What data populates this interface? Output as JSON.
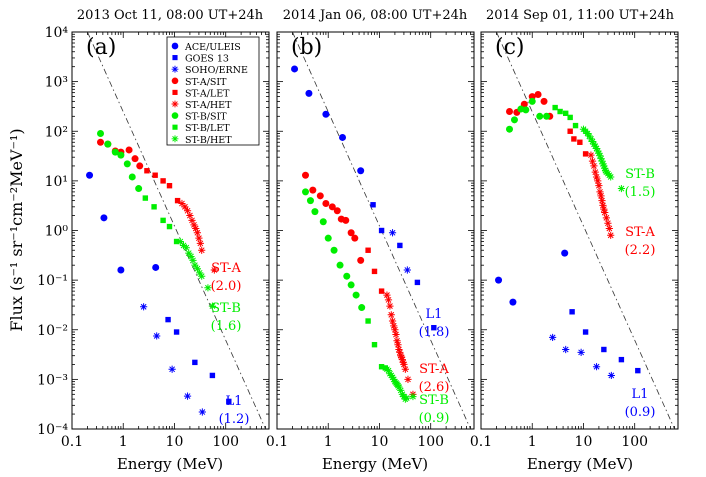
{
  "figure": {
    "ylabel": "Flux (s⁻¹ sr⁻¹cm⁻²MeV⁻¹)",
    "xlabel": "Energy (MeV)",
    "y_tick_labels": [
      "10⁴",
      "10³",
      "10²",
      "10¹",
      "10⁰",
      "10⁻¹",
      "10⁻²",
      "10⁻³",
      "10⁻⁴"
    ],
    "x_tick_labels": [
      "0.1",
      "1",
      "10",
      "100"
    ]
  },
  "legend": [
    {
      "label": "ACE/ULEIS",
      "color": "#0000ff",
      "marker": "circle"
    },
    {
      "label": "GOES 13",
      "color": "#0000ff",
      "marker": "square"
    },
    {
      "label": "SOHO/ERNE",
      "color": "#0000ff",
      "marker": "star"
    },
    {
      "label": "ST-A/SIT",
      "color": "#ff0000",
      "marker": "circle"
    },
    {
      "label": "ST-A/LET",
      "color": "#ff0000",
      "marker": "square"
    },
    {
      "label": "ST-A/HET",
      "color": "#ff0000",
      "marker": "star"
    },
    {
      "label": "ST-B/SIT",
      "color": "#00ee00",
      "marker": "circle"
    },
    {
      "label": "ST-B/LET",
      "color": "#00ee00",
      "marker": "square"
    },
    {
      "label": "ST-B/HET",
      "color": "#00ee00",
      "marker": "star"
    }
  ],
  "chart_data": [
    {
      "type": "scatter",
      "panel": "(a)",
      "title": "2013 Oct 11, 08:00 UT+24h",
      "xlabel": "Energy (MeV)",
      "ylabel": "Flux (s⁻¹ sr⁻¹cm⁻²MeV⁻¹)",
      "xscale": "log",
      "yscale": "log",
      "xlim": [
        0.1,
        700
      ],
      "ylim": [
        0.0001,
        10000
      ],
      "reference_line": {
        "x": [
          0.2,
          600
        ],
        "y": [
          10000,
          0.0001
        ]
      },
      "series": [
        {
          "name": "ACE/ULEIS",
          "x": [
            0.22,
            0.42,
            0.9,
            4.3
          ],
          "y": [
            13,
            1.8,
            0.16,
            0.18
          ]
        },
        {
          "name": "GOES 13",
          "x": [
            7.5,
            11,
            25,
            55,
            115
          ],
          "y": [
            0.016,
            0.009,
            0.0022,
            0.0012,
            0.00036
          ]
        },
        {
          "name": "SOHO/ERNE",
          "x": [
            2.5,
            4.5,
            9,
            18,
            35
          ],
          "y": [
            0.029,
            0.0075,
            0.0016,
            0.00046,
            0.00022
          ]
        },
        {
          "name": "ST-A/SIT",
          "x": [
            0.36,
            0.5,
            0.7,
            0.9,
            1.3,
            1.7,
            2.1
          ],
          "y": [
            60,
            55,
            40,
            38,
            42,
            28,
            20
          ]
        },
        {
          "name": "ST-A/LET",
          "x": [
            2.9,
            4.2,
            6,
            8,
            11.5
          ],
          "y": [
            16,
            13,
            10,
            8,
            4
          ]
        },
        {
          "name": "ST-A/HET",
          "x": [
            14,
            16,
            18,
            20,
            22,
            24,
            26,
            28,
            30,
            32,
            34,
            60
          ],
          "y": [
            3.5,
            3,
            2.5,
            2,
            1.6,
            1.3,
            1.1,
            0.9,
            0.7,
            0.55,
            0.4,
            0.16
          ]
        },
        {
          "name": "ST-B/SIT",
          "x": [
            0.36,
            0.5,
            0.7,
            0.9,
            1.2,
            1.5,
            2
          ],
          "y": [
            90,
            55,
            38,
            33,
            22,
            12,
            7
          ]
        },
        {
          "name": "ST-B/LET",
          "x": [
            2.7,
            4,
            6,
            8,
            11
          ],
          "y": [
            4.5,
            3,
            1.6,
            1.2,
            0.6
          ]
        },
        {
          "name": "ST-B/HET",
          "x": [
            13,
            15,
            17,
            19,
            21,
            23,
            25,
            28,
            31,
            34,
            45,
            55
          ],
          "y": [
            0.6,
            0.5,
            0.45,
            0.35,
            0.3,
            0.25,
            0.2,
            0.17,
            0.14,
            0.12,
            0.07,
            0.03
          ]
        }
      ],
      "annotations": [
        {
          "text": "ST-A",
          "sub": "(2.0)",
          "color": "#ff0000"
        },
        {
          "text": "ST-B",
          "sub": "(1.6)",
          "color": "#00ee00"
        },
        {
          "text": "L1",
          "sub": "(1.2)",
          "color": "#0000ff"
        }
      ]
    },
    {
      "type": "scatter",
      "panel": "(b)",
      "title": "2014 Jan 06, 08:00 UT+24h",
      "xlabel": "Energy (MeV)",
      "xscale": "log",
      "yscale": "log",
      "xlim": [
        0.1,
        700
      ],
      "ylim": [
        0.0001,
        10000
      ],
      "reference_line": {
        "x": [
          0.2,
          600
        ],
        "y": [
          10000,
          0.0001
        ]
      },
      "series": [
        {
          "name": "ACE/ULEIS",
          "x": [
            0.22,
            0.42,
            0.9,
            1.9,
            4.3
          ],
          "y": [
            1800,
            580,
            220,
            75,
            16
          ]
        },
        {
          "name": "GOES 13",
          "x": [
            7.5,
            11,
            25,
            55,
            115
          ],
          "y": [
            3.3,
            1.0,
            0.5,
            0.09,
            0.011
          ]
        },
        {
          "name": "SOHO/ERNE",
          "x": [
            18,
            35
          ],
          "y": [
            0.9,
            0.16
          ]
        },
        {
          "name": "ST-A/SIT",
          "x": [
            0.36,
            0.5,
            0.7,
            0.9,
            1.2,
            1.5,
            1.8,
            2.2,
            2.8,
            3.3,
            4.3
          ],
          "y": [
            13,
            6.5,
            5,
            3.5,
            3,
            2.5,
            1.7,
            1.6,
            0.9,
            0.7,
            0.25
          ]
        },
        {
          "name": "ST-A/LET",
          "x": [
            6,
            8,
            11
          ],
          "y": [
            0.4,
            0.15,
            0.06
          ]
        },
        {
          "name": "ST-A/HET",
          "x": [
            14,
            15,
            16,
            17,
            18,
            19,
            20,
            21,
            22,
            23,
            24,
            25,
            26,
            27,
            28,
            29,
            30,
            32,
            36,
            45
          ],
          "y": [
            0.05,
            0.04,
            0.03,
            0.02,
            0.015,
            0.012,
            0.01,
            0.008,
            0.006,
            0.005,
            0.004,
            0.0035,
            0.003,
            0.0028,
            0.0025,
            0.0022,
            0.002,
            0.0016,
            0.001,
            0.0005
          ]
        },
        {
          "name": "ST-B/SIT",
          "x": [
            0.36,
            0.45,
            0.55,
            0.8,
            1.0,
            1.3,
            1.7,
            2.3,
            2.8,
            3.5,
            4.5
          ],
          "y": [
            6,
            4,
            2.4,
            1.5,
            0.7,
            0.4,
            0.2,
            0.12,
            0.08,
            0.05,
            0.028
          ]
        },
        {
          "name": "ST-B/LET",
          "x": [
            6,
            8,
            11,
            13
          ],
          "y": [
            0.015,
            0.005,
            0.0018,
            0.0017
          ]
        },
        {
          "name": "ST-B/HET",
          "x": [
            14,
            15,
            16,
            17,
            18,
            19,
            20,
            21,
            22,
            23,
            24,
            26,
            28,
            30,
            32,
            34,
            45
          ],
          "y": [
            0.0016,
            0.0015,
            0.0013,
            0.0012,
            0.0011,
            0.001,
            0.0009,
            0.00085,
            0.0008,
            0.00075,
            0.0007,
            0.0006,
            0.0005,
            0.00045,
            0.0004,
            0.00042,
            0.00045
          ]
        }
      ],
      "annotations": [
        {
          "text": "L1",
          "sub": "(1.8)",
          "color": "#0000ff"
        },
        {
          "text": "ST-A",
          "sub": "(2.6)",
          "color": "#ff0000"
        },
        {
          "text": "ST-B",
          "sub": "(0.9)",
          "color": "#00ee00"
        }
      ]
    },
    {
      "type": "scatter",
      "panel": "(c)",
      "title": "2014 Sep 01, 11:00 UT+24h",
      "xlabel": "Energy (MeV)",
      "xscale": "log",
      "yscale": "log",
      "xlim": [
        0.1,
        700
      ],
      "ylim": [
        0.0001,
        10000
      ],
      "reference_line": {
        "x": [
          0.2,
          600
        ],
        "y": [
          10000,
          0.0001
        ]
      },
      "series": [
        {
          "name": "ACE/ULEIS",
          "x": [
            0.22,
            0.42,
            4.3
          ],
          "y": [
            0.1,
            0.036,
            0.35
          ]
        },
        {
          "name": "GOES 13",
          "x": [
            6,
            11,
            25,
            55,
            115
          ],
          "y": [
            0.023,
            0.009,
            0.004,
            0.0025,
            0.0015
          ]
        },
        {
          "name": "SOHO/ERNE",
          "x": [
            2.5,
            4.5,
            9,
            18,
            35
          ],
          "y": [
            0.007,
            0.004,
            0.0035,
            0.0018,
            0.0012
          ]
        },
        {
          "name": "ST-A/SIT",
          "x": [
            0.36,
            0.5,
            0.7,
            1.0,
            1.3,
            1.7,
            2.2
          ],
          "y": [
            250,
            240,
            350,
            500,
            550,
            400,
            200
          ]
        },
        {
          "name": "ST-A/LET",
          "x": [
            5.5,
            6.5,
            8.5,
            11
          ],
          "y": [
            100,
            70,
            60,
            35
          ]
        },
        {
          "name": "ST-A/HET",
          "x": [
            14,
            15,
            16,
            17,
            18,
            19,
            20,
            21,
            22,
            23,
            24,
            25,
            26,
            28,
            30,
            32,
            34
          ],
          "y": [
            33,
            25,
            20,
            15,
            12,
            10,
            8,
            6,
            5,
            4,
            3.2,
            2.7,
            2.3,
            1.8,
            1.4,
            1.1,
            0.8
          ]
        },
        {
          "name": "ST-B/SIT",
          "x": [
            0.36,
            0.45,
            0.6,
            0.75,
            1.0,
            1.4,
            1.9
          ],
          "y": [
            110,
            170,
            280,
            270,
            400,
            200,
            200
          ]
        },
        {
          "name": "ST-B/LET",
          "x": [
            2.8,
            3.5,
            4.5,
            5.5,
            7
          ],
          "y": [
            300,
            250,
            230,
            190,
            130
          ]
        },
        {
          "name": "ST-B/HET",
          "x": [
            10,
            11,
            12,
            13,
            14,
            15,
            16,
            17,
            18,
            19,
            20,
            21,
            22,
            23,
            24,
            25,
            26,
            27,
            28,
            30,
            32,
            34,
            55
          ],
          "y": [
            110,
            100,
            90,
            80,
            70,
            62,
            55,
            50,
            45,
            40,
            36,
            32,
            28,
            25,
            22,
            20,
            18,
            16,
            15,
            14,
            13,
            12,
            7
          ]
        }
      ],
      "annotations": [
        {
          "text": "ST-B",
          "sub": "(1.5)",
          "color": "#00ee00"
        },
        {
          "text": "ST-A",
          "sub": "(2.2)",
          "color": "#ff0000"
        },
        {
          "text": "L1",
          "sub": "(0.9)",
          "color": "#0000ff"
        }
      ]
    }
  ]
}
